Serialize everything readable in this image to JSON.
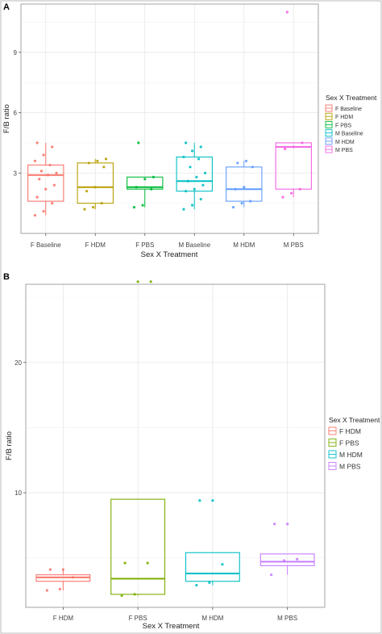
{
  "chart_data": [
    {
      "panel": "A",
      "type": "box",
      "xlabel": "Sex X Treatment",
      "ylabel": "F/B ratio",
      "ylim": [
        0,
        11.4
      ],
      "yticks": [
        3,
        6,
        9
      ],
      "grid": true,
      "legend_title": "Sex X Treatment",
      "legend_position": "right",
      "categories": [
        "F Baseline",
        "F HDM",
        "F PBS",
        "M Baseline",
        "M HDM",
        "M PBS"
      ],
      "colors": [
        "#F8766D",
        "#B79F00",
        "#00BA38",
        "#00BFC4",
        "#619CFF",
        "#F564E3"
      ],
      "boxes": [
        {
          "q1": 1.6,
          "median": 2.9,
          "q3": 3.4,
          "whisker_low": 0.9,
          "whisker_high": 4.5,
          "points": [
            0.9,
            1.1,
            1.5,
            1.8,
            2.2,
            2.4,
            2.7,
            2.9,
            3.0,
            3.1,
            3.4,
            3.6,
            3.9,
            4.3,
            4.5
          ]
        },
        {
          "q1": 1.5,
          "median": 2.3,
          "q3": 3.5,
          "whisker_low": 1.2,
          "whisker_high": 3.7,
          "points": [
            1.2,
            1.3,
            1.5,
            2.1,
            2.3,
            3.3,
            3.5,
            3.6,
            3.7
          ]
        },
        {
          "q1": 2.2,
          "median": 2.3,
          "q3": 2.8,
          "whisker_low": 1.3,
          "whisker_high": 2.8,
          "points": [
            1.3,
            1.4,
            2.2,
            2.3,
            2.7,
            2.8,
            4.5
          ]
        },
        {
          "q1": 2.1,
          "median": 2.6,
          "q3": 3.8,
          "whisker_low": 1.2,
          "whisker_high": 4.5,
          "points": [
            1.2,
            1.4,
            1.7,
            2.1,
            2.2,
            2.4,
            2.6,
            2.8,
            3.0,
            3.3,
            3.7,
            3.8,
            4.1,
            4.3,
            4.5
          ]
        },
        {
          "q1": 1.6,
          "median": 2.2,
          "q3": 3.3,
          "whisker_low": 1.3,
          "whisker_high": 3.6,
          "points": [
            1.3,
            1.5,
            1.6,
            2.2,
            2.3,
            3.3,
            3.5,
            3.6
          ]
        },
        {
          "q1": 2.2,
          "median": 4.3,
          "q3": 4.5,
          "whisker_low": 1.8,
          "whisker_high": 4.5,
          "points": [
            1.8,
            2.0,
            2.2,
            4.2,
            4.3,
            4.5,
            11.0
          ]
        }
      ]
    },
    {
      "panel": "B",
      "type": "box",
      "xlabel": "Sex X Treatment",
      "ylabel": "F/B ratio",
      "ylim": [
        1.2,
        26
      ],
      "yticks": [
        10,
        20
      ],
      "grid": true,
      "legend_title": "Sex X Treatment",
      "legend_position": "right",
      "categories": [
        "F HDM",
        "F PBS",
        "M HDM",
        "M PBS"
      ],
      "colors": [
        "#F8766D",
        "#7CAE00",
        "#00BFC4",
        "#C77CFF"
      ],
      "boxes": [
        {
          "q1": 3.2,
          "median": 3.5,
          "q3": 3.7,
          "whisker_low": 2.5,
          "whisker_high": 4.1,
          "points": [
            2.5,
            2.6,
            3.5,
            4.1,
            4.1
          ]
        },
        {
          "q1": 2.2,
          "median": 3.4,
          "q3": 9.5,
          "whisker_low": 2.1,
          "whisker_high": 9.5,
          "points": [
            2.1,
            2.2,
            4.6,
            4.6,
            26.2,
            26.2
          ]
        },
        {
          "q1": 3.2,
          "median": 3.8,
          "q3": 5.4,
          "whisker_low": 2.9,
          "whisker_high": 5.4,
          "points": [
            2.9,
            3.1,
            4.5,
            9.4,
            9.4
          ]
        },
        {
          "q1": 4.4,
          "median": 4.7,
          "q3": 5.3,
          "whisker_low": 3.7,
          "whisker_high": 5.3,
          "points": [
            3.7,
            4.8,
            4.9,
            7.6,
            7.6
          ]
        }
      ]
    }
  ]
}
